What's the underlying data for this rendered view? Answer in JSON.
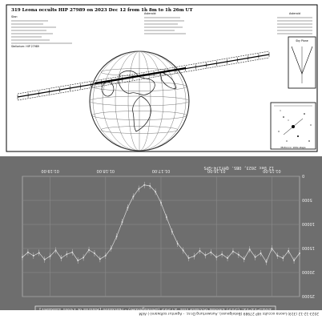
{
  "map": {
    "title": "319 Leona occults HIP 27989 on 2023 Dec 12 from 1h 8m to 1h 26m UT",
    "info_left": "Star:",
    "info_mid": "Asteroid:",
    "info_right": "Asteroid",
    "star_catalog_line": "Stellarium: HIP 27989",
    "finder_caption": "Motion in 100s steps",
    "inset_label": "Sky Plane"
  },
  "chart_data": {
    "type": "line",
    "orientation": "rotated-180",
    "title": "2023-12-12: (319) Leona occults HIP 27989 (Betelgeuse) - Alicante [Katrin & Peter Lindner]",
    "date_line": "12 Dec 2023, OBS. QHY174-GPS",
    "x_ticks": [
      "01:15:00",
      "01:16:00",
      "01:17:00",
      "01:18:00",
      "01:19:00"
    ],
    "y_ticks": [
      "25000",
      "20000",
      "15000",
      "10000",
      "5000",
      "0"
    ],
    "ylim": [
      0,
      25000
    ],
    "x": [
      0.0,
      0.02,
      0.04,
      0.06,
      0.08,
      0.1,
      0.12,
      0.14,
      0.16,
      0.18,
      0.2,
      0.22,
      0.24,
      0.26,
      0.28,
      0.3,
      0.32,
      0.34,
      0.36,
      0.38,
      0.4,
      0.42,
      0.44,
      0.46,
      0.48,
      0.5,
      0.52,
      0.54,
      0.56,
      0.58,
      0.6,
      0.62,
      0.64,
      0.66,
      0.68,
      0.7,
      0.72,
      0.74,
      0.76,
      0.78,
      0.8,
      0.82,
      0.84,
      0.86,
      0.88,
      0.9,
      0.92,
      0.94,
      0.96,
      0.98,
      1.0
    ],
    "values": [
      16000,
      17500,
      15500,
      17000,
      16500,
      15000,
      17800,
      16000,
      16800,
      15200,
      17200,
      16300,
      15600,
      17000,
      16200,
      16800,
      15800,
      16400,
      15500,
      16600,
      17000,
      15400,
      14000,
      11500,
      8500,
      5500,
      3200,
      2000,
      1800,
      2600,
      4200,
      6500,
      9500,
      12500,
      15000,
      16500,
      17200,
      16000,
      15300,
      16900,
      17500,
      15800,
      16200,
      17000,
      15400,
      16600,
      17300,
      15900,
      16500,
      15800,
      16800
    ],
    "series": [
      {
        "name": "",
        "color": "#dcdcdc"
      }
    ],
    "grid": true
  },
  "footer": {
    "text": "2023-12-12 (319) Leona occults HIP 27989 (Betelgeuse), Auswertung Dr.sc. - Agentur software(-) AVM"
  },
  "colors": {
    "plot_bg": "#6e6e6e",
    "grid": "#8c8c8c",
    "globe_line": "#222222"
  }
}
